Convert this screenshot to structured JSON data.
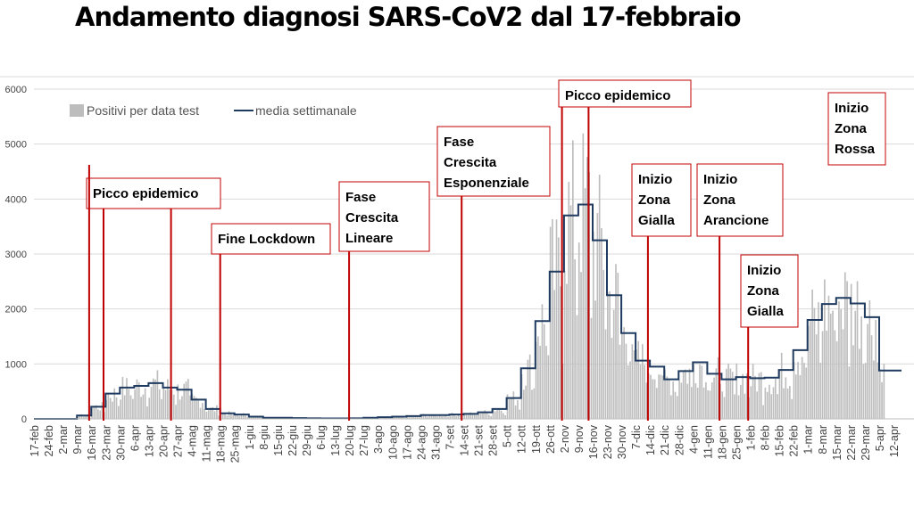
{
  "title": "Andamento diagnosi SARS-CoV2 dal 17-febbraio",
  "chart_data": {
    "type": "bar",
    "ylim": [
      0,
      6000
    ],
    "yticks": [
      0,
      1000,
      2000,
      3000,
      4000,
      5000,
      6000
    ],
    "grid": true,
    "legend_position": "top-left",
    "xtick_labels": [
      "17-feb",
      "24-feb",
      "2-mar",
      "9-mar",
      "16-mar",
      "23-mar",
      "30-mar",
      "6-apr",
      "13-apr",
      "20-apr",
      "27-apr",
      "4-mag",
      "11-mag",
      "18-mag",
      "25-mag",
      "1-giu",
      "8-giu",
      "15-giu",
      "22-giu",
      "29-giu",
      "6-lug",
      "13-lug",
      "20-lug",
      "27-lug",
      "3-ago",
      "10-ago",
      "17-ago",
      "24-ago",
      "31-ago",
      "7-set",
      "14-set",
      "21-set",
      "28-set",
      "5-ott",
      "12-ott",
      "19-ott",
      "26-ott",
      "2-nov",
      "9-nov",
      "16-nov",
      "23-nov",
      "30-nov",
      "7-dic",
      "14-dic",
      "21-dic",
      "28-dic",
      "4-gen",
      "11-gen",
      "18-gen",
      "25-gen",
      "1-feb",
      "8-feb",
      "15-feb",
      "22-feb",
      "1-mar",
      "8-mar",
      "15-mar",
      "22-mar",
      "29-mar",
      "5-apr",
      "12-apr"
    ],
    "series": [
      {
        "name": "Positivi per data test",
        "kind": "daily-bars",
        "color": "#bdbdbd",
        "weekly_levels": [
          0,
          0,
          0,
          60,
          220,
          460,
          570,
          600,
          650,
          570,
          530,
          350,
          180,
          100,
          80,
          40,
          20,
          20,
          15,
          10,
          8,
          8,
          10,
          20,
          30,
          40,
          50,
          70,
          70,
          80,
          90,
          120,
          180,
          380,
          920,
          1780,
          2680,
          3700,
          3900,
          3250,
          2250,
          1560,
          1060,
          950,
          720,
          870,
          1030,
          820,
          720,
          760,
          740,
          750,
          890,
          1250,
          1800,
          2090,
          2200,
          2100,
          1850
        ]
      },
      {
        "name": "media settimanale",
        "kind": "weekly-step-line",
        "color": "#1f3b60",
        "weekly_levels": [
          0,
          0,
          0,
          60,
          220,
          460,
          570,
          600,
          650,
          570,
          530,
          350,
          180,
          100,
          80,
          40,
          20,
          20,
          15,
          10,
          8,
          8,
          10,
          20,
          30,
          40,
          50,
          70,
          70,
          80,
          90,
          120,
          180,
          380,
          920,
          1780,
          2680,
          3700,
          3900,
          3250,
          2250,
          1560,
          1060,
          950,
          720,
          870,
          1030,
          820,
          720,
          760,
          740,
          750,
          890,
          1250,
          1800,
          2090,
          2200,
          2100,
          1850
        ],
        "tail_level": 880
      }
    ],
    "annotations": [
      {
        "label": [
          "Picco epidemico"
        ],
        "dates": [
          "22-mar",
          "24-apr"
        ]
      },
      {
        "label": [
          "Fine Lockdown"
        ],
        "dates": [
          "18-mag"
        ]
      },
      {
        "label": [
          "Fase",
          "Crescita",
          "Lineare"
        ],
        "dates": [
          "20-lug"
        ]
      },
      {
        "label": [
          "Fase",
          "Crescita",
          "Esponenziale"
        ],
        "dates": [
          "13-set"
        ]
      },
      {
        "label": [
          "Picco epidemico"
        ],
        "dates": [
          "1-nov",
          "14-nov"
        ]
      },
      {
        "label": [
          "Inizio",
          "Zona",
          "Gialla"
        ],
        "dates": [
          "13-dic"
        ]
      },
      {
        "label": [
          "Inizio",
          "Zona",
          "Arancione"
        ],
        "dates": [
          "17-gen"
        ]
      },
      {
        "label": [
          "Inizio",
          "Zona",
          "Gialla"
        ],
        "dates": [
          "31-gen"
        ]
      },
      {
        "label": [
          "Inizio",
          "Zona",
          "Rossa"
        ],
        "dates": [
          "15-mar"
        ]
      }
    ]
  },
  "legend": {
    "bars_label": "Positivi per data test",
    "line_label": "media settimanale"
  },
  "colors": {
    "bars": "#bdbdbd",
    "line": "#1f3b60",
    "annotation": "#c00000",
    "grid": "#d9d9d9"
  }
}
